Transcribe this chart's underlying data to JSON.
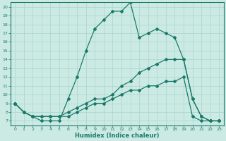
{
  "xlabel": "Humidex (Indice chaleur)",
  "bg_color": "#cceae4",
  "line_color": "#1a7a6a",
  "grid_color": "#aad4cc",
  "xlim": [
    -0.5,
    23.5
  ],
  "ylim": [
    6.5,
    20.5
  ],
  "xticks": [
    0,
    1,
    2,
    3,
    4,
    5,
    6,
    7,
    8,
    9,
    10,
    11,
    12,
    13,
    14,
    15,
    16,
    17,
    18,
    19,
    20,
    21,
    22,
    23
  ],
  "yticks": [
    7,
    8,
    9,
    10,
    11,
    12,
    13,
    14,
    15,
    16,
    17,
    18,
    19,
    20
  ],
  "line1_x": [
    0,
    1,
    2,
    3,
    4,
    5,
    6,
    7,
    8,
    9,
    10,
    11,
    12,
    13,
    14,
    15,
    16,
    17,
    18,
    19,
    20,
    21,
    22,
    23
  ],
  "line1_y": [
    9.0,
    8.0,
    7.5,
    7.0,
    7.0,
    7.0,
    9.5,
    12.0,
    15.0,
    17.5,
    18.5,
    19.5,
    19.5,
    20.5,
    16.5,
    17.0,
    17.5,
    17.0,
    16.5,
    14.0,
    9.5,
    7.5,
    7.0,
    7.0
  ],
  "line2_x": [
    0,
    1,
    2,
    3,
    4,
    5,
    6,
    7,
    8,
    9,
    10,
    11,
    12,
    13,
    14,
    15,
    16,
    17,
    18,
    19,
    20,
    21,
    22,
    23
  ],
  "line2_y": [
    9.0,
    8.0,
    7.5,
    7.5,
    7.5,
    7.5,
    8.0,
    8.5,
    9.0,
    9.5,
    9.5,
    10.0,
    11.0,
    11.5,
    12.5,
    13.0,
    13.5,
    14.0,
    14.0,
    14.0,
    9.5,
    7.5,
    7.0,
    7.0
  ],
  "line3_x": [
    0,
    1,
    2,
    3,
    4,
    5,
    6,
    7,
    8,
    9,
    10,
    11,
    12,
    13,
    14,
    15,
    16,
    17,
    18,
    19,
    20,
    21,
    22,
    23
  ],
  "line3_y": [
    9.0,
    8.0,
    7.5,
    7.5,
    7.5,
    7.5,
    7.5,
    8.0,
    8.5,
    9.0,
    9.0,
    9.5,
    10.0,
    10.5,
    10.5,
    11.0,
    11.0,
    11.5,
    11.5,
    12.0,
    7.5,
    7.0,
    7.0,
    7.0
  ]
}
